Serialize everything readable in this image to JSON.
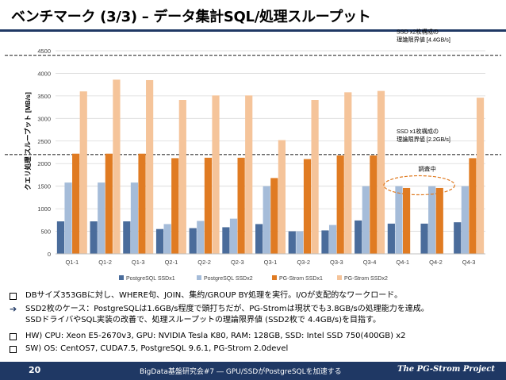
{
  "slide": {
    "title": "ベンチマーク (3/3) – データ集計SQL/処理スループット",
    "page_number": "20",
    "footer_center": "BigData基盤研究会#7 ― GPU/SSDがPostgreSQLを加速する",
    "footer_brand": "The PG-Strom Project"
  },
  "colors": {
    "pg_ssdx1": "#4a6c9b",
    "pg_ssdx2": "#a5bcd9",
    "strom_ssdx1": "#e07b22",
    "strom_ssdx2": "#f5c49a",
    "accent": "#1f3864",
    "annotation": "#e07b22"
  },
  "chart_data": {
    "type": "bar",
    "title": "",
    "xlabel": "",
    "ylabel": "クエリ処理 スループット [MB/s]",
    "ylim": [
      0,
      4500
    ],
    "yticks": [
      0,
      500,
      1000,
      1500,
      2000,
      2500,
      3000,
      3500,
      4000,
      4500
    ],
    "grid": true,
    "legend_position": "bottom",
    "categories": [
      "Q1-1",
      "Q1-2",
      "Q1-3",
      "Q2-1",
      "Q2-2",
      "Q2-3",
      "Q3-1",
      "Q3-2",
      "Q3-3",
      "Q3-4",
      "Q4-1",
      "Q4-2",
      "Q4-3"
    ],
    "series": [
      {
        "name": "PostgreSQL SSDx1",
        "color": "#4a6c9b",
        "values": [
          720,
          720,
          720,
          550,
          570,
          590,
          660,
          500,
          520,
          740,
          670,
          670,
          700
        ]
      },
      {
        "name": "PostgreSQL SSDx2",
        "color": "#a5bcd9",
        "values": [
          1580,
          1580,
          1580,
          660,
          730,
          780,
          1500,
          500,
          640,
          1500,
          1500,
          1500,
          1500
        ]
      },
      {
        "name": "PG-Strom SSDx1",
        "color": "#e07b22",
        "values": [
          2220,
          2220,
          2220,
          2120,
          2130,
          2130,
          1680,
          2100,
          2180,
          2180,
          1460,
          1460,
          2120
        ]
      },
      {
        "name": "PG-Strom SSDx2",
        "color": "#f5c49a",
        "values": [
          3600,
          3860,
          3850,
          3410,
          3510,
          3510,
          2520,
          3410,
          3580,
          3610,
          0,
          0,
          3460
        ]
      }
    ],
    "reference_lines": [
      {
        "value": 4400,
        "label_line1": "SSD x2枚構成の",
        "label_line2": "理論限界値 [4.4GB/s]"
      },
      {
        "value": 2200,
        "label_line1": "SSD x1枚構成の",
        "label_line2": "理論限界値 [2.2GB/s]"
      }
    ],
    "annotation": {
      "label": "調査中",
      "categories": [
        "Q4-1",
        "Q4-2"
      ]
    }
  },
  "bullets": [
    {
      "marker": "square",
      "text": "DBサイズ353GBに対し、WHERE句、JOIN、集約/GROUP BY処理を実行。I/Oが支配的なワークロード。"
    },
    {
      "marker": "arrow",
      "text": "SSD2枚のケース：PostgreSQLは1.6GB/s程度で頭打ちだが、PG-Stromは現状でも3.8GB/sの処理能力を達成。"
    },
    {
      "marker": "none",
      "text": "SSDドライバやSQL実装の改善で、処理スループットの理論限界値 (SSD2枚で 4.4GB/s)を目指す。"
    },
    {
      "marker": "square",
      "text": "HW) CPU: Xeon E5-2670v3, GPU: NVIDIA Tesla K80, RAM: 128GB, SSD: Intel SSD 750(400GB) x2"
    },
    {
      "marker": "square",
      "text": "SW) OS: CentOS7, CUDA7.5, PostgreSQL 9.6.1, PG-Strom 2.0devel"
    }
  ]
}
